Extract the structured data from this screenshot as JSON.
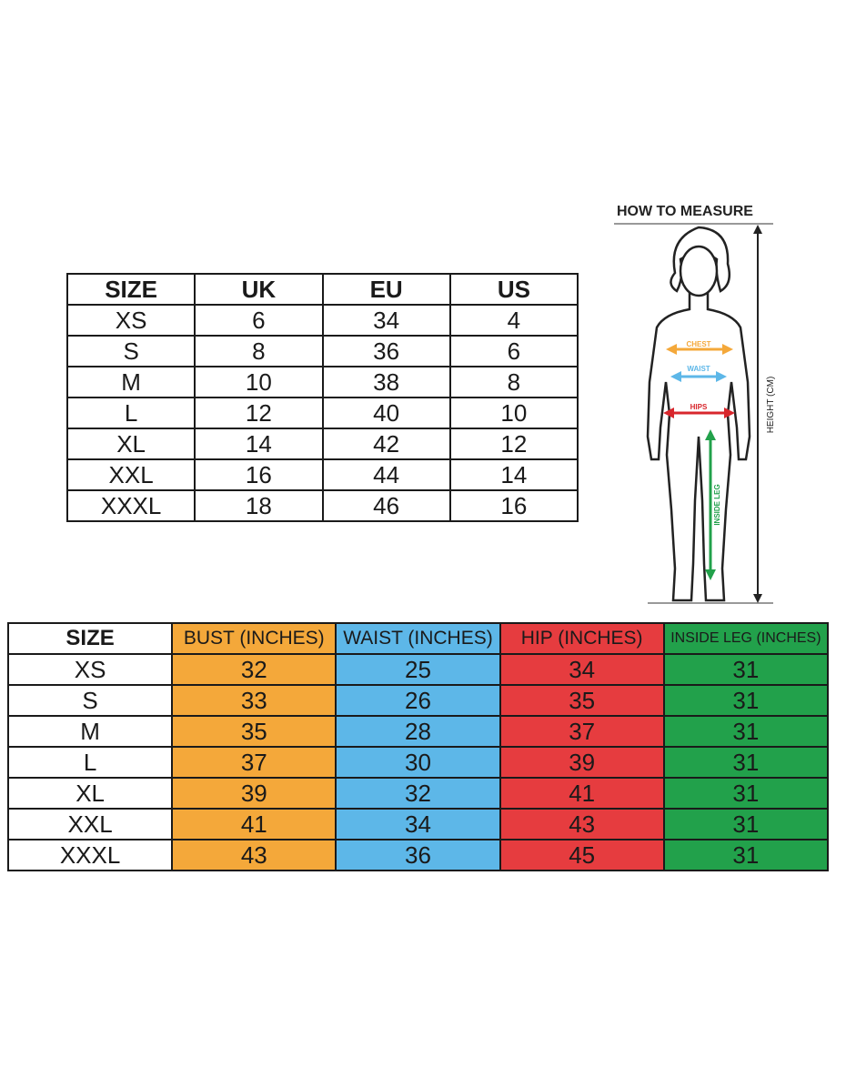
{
  "size_table": {
    "header": [
      "SIZE",
      "UK",
      "EU",
      "US"
    ],
    "rows": [
      [
        "XS",
        6,
        34,
        4
      ],
      [
        "S",
        8,
        36,
        6
      ],
      [
        "M",
        10,
        38,
        8
      ],
      [
        "L",
        12,
        40,
        10
      ],
      [
        "XL",
        14,
        42,
        12
      ],
      [
        "XXL",
        16,
        44,
        14
      ],
      [
        "XXXL",
        18,
        46,
        16
      ]
    ]
  },
  "measurements_table": {
    "header": [
      "SIZE",
      "BUST (INCHES)",
      "WAIST (INCHES)",
      "HIP (INCHES)",
      "INSIDE LEG (INCHES)"
    ],
    "rows": [
      [
        "XS",
        32,
        25,
        34,
        31
      ],
      [
        "S",
        33,
        26,
        35,
        31
      ],
      [
        "M",
        35,
        28,
        37,
        31
      ],
      [
        "L",
        37,
        30,
        39,
        31
      ],
      [
        "XL",
        39,
        32,
        41,
        31
      ],
      [
        "XXL",
        41,
        34,
        43,
        31
      ],
      [
        "XXXL",
        43,
        36,
        45,
        31
      ]
    ]
  },
  "how_to_measure": {
    "title": "HOW TO MEASURE",
    "chest": "CHEST",
    "waist": "WAIST",
    "hips": "HIPS",
    "inside_leg": "INSIDE LEG",
    "height": "HEIGHT (CM)"
  }
}
